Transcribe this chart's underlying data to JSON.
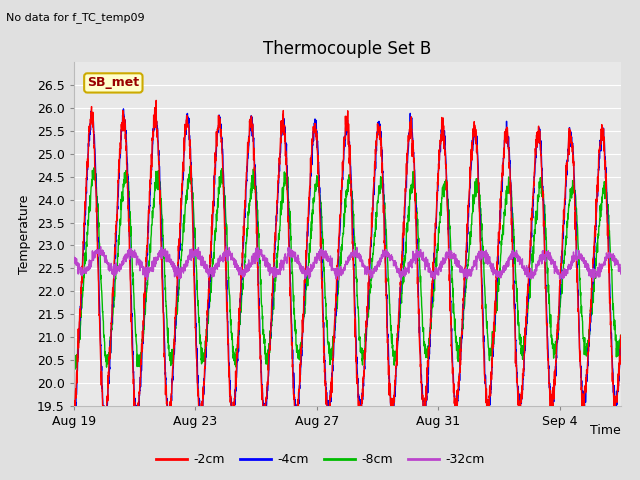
{
  "title": "Thermocouple Set B",
  "subtitle": "No data for f_TC_temp09",
  "xlabel": "Time",
  "ylabel": "Temperature",
  "ylim": [
    19.5,
    27.0
  ],
  "yticks": [
    19.5,
    20.0,
    20.5,
    21.0,
    21.5,
    22.0,
    22.5,
    23.0,
    23.5,
    24.0,
    24.5,
    25.0,
    25.5,
    26.0,
    26.5
  ],
  "xtick_labels": [
    "Aug 19",
    "Aug 23",
    "Aug 27",
    "Aug 31",
    "Sep 4"
  ],
  "xtick_positions": [
    0,
    4,
    8,
    12,
    16
  ],
  "xlim": [
    0,
    18
  ],
  "legend_labels": [
    "-2cm",
    "-4cm",
    "-8cm",
    "-32cm"
  ],
  "legend_colors": [
    "#ff0000",
    "#0000ff",
    "#00bb00",
    "#bb44cc"
  ],
  "annotation_text": "SB_met",
  "annotation_box_color": "#ffffcc",
  "annotation_box_edge": "#ccaa00",
  "figure_bg": "#e0e0e0",
  "plot_bg": "#e8e8e8",
  "grid_color": "#ffffff",
  "color_2cm": "#ff0000",
  "color_4cm": "#0000ee",
  "color_8cm": "#00bb00",
  "color_32cm": "#bb44cc",
  "title_fontsize": 12,
  "axis_fontsize": 9,
  "legend_fontsize": 9
}
